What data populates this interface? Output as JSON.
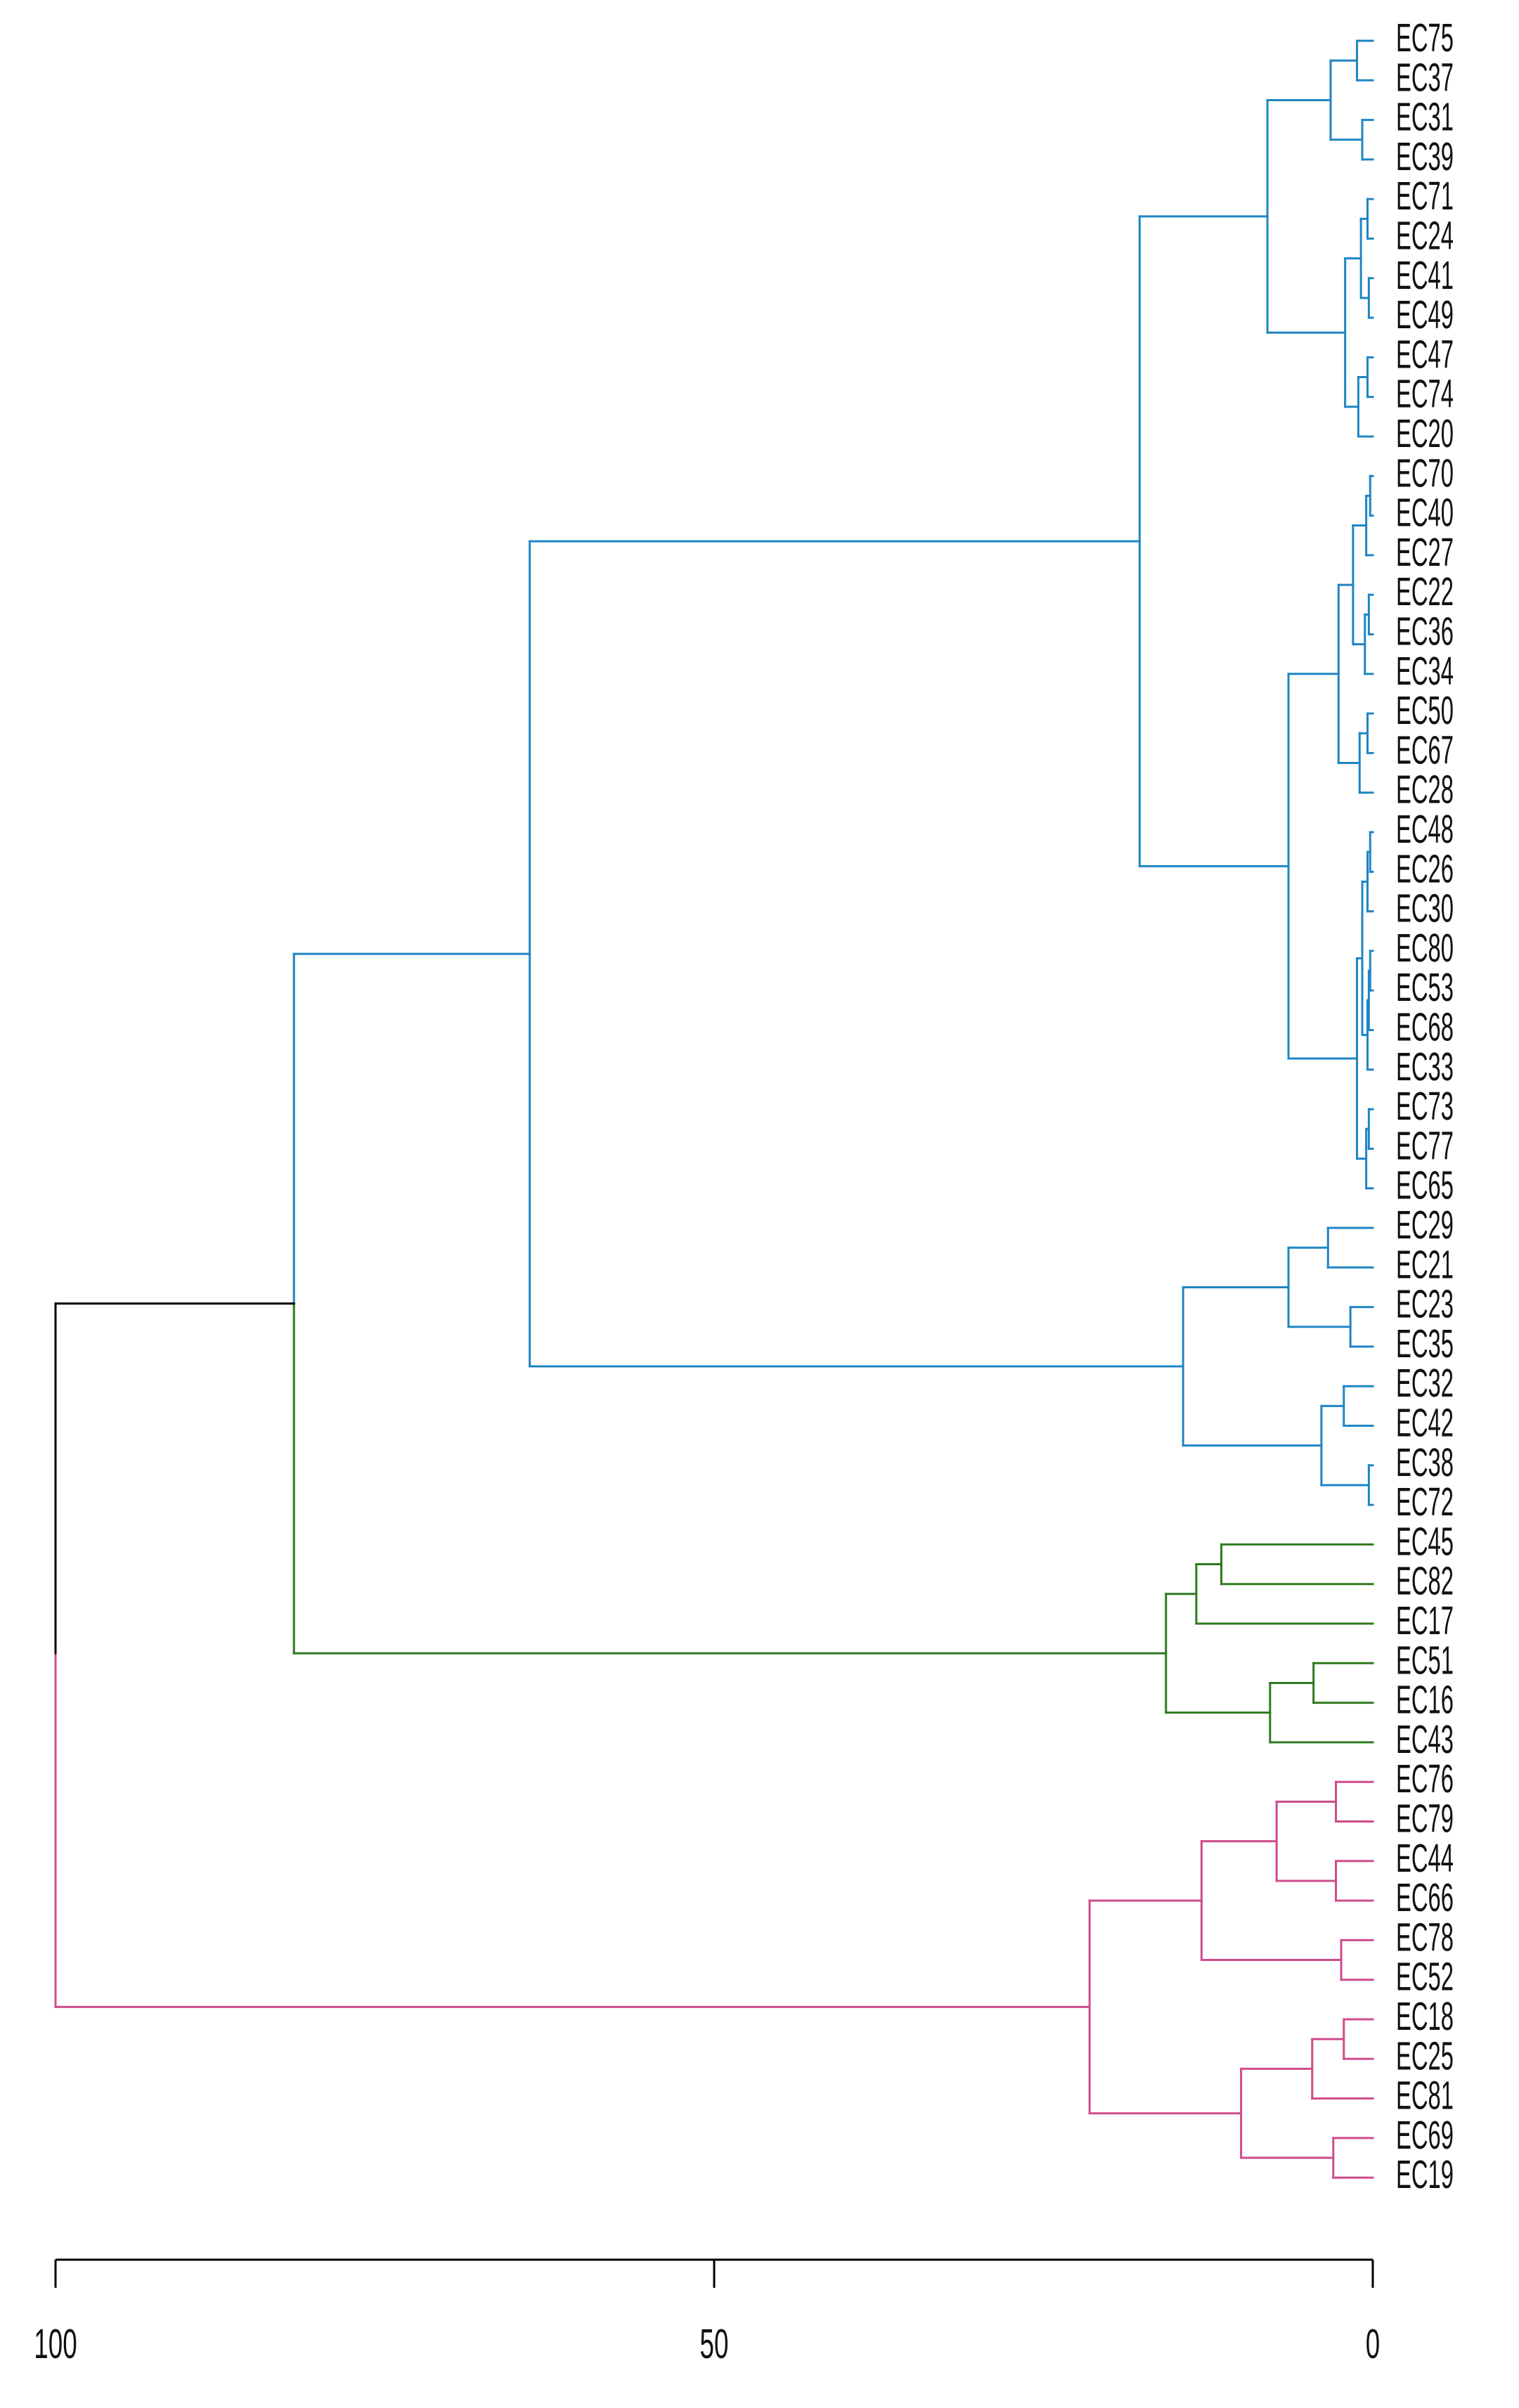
{
  "chart_data": {
    "type": "dendrogram",
    "orientation": "horizontal",
    "title": "",
    "xlabel": "",
    "ylabel": "",
    "xlim": [
      100,
      0
    ],
    "x_ticks": [
      {
        "value": 100,
        "label": "100"
      },
      {
        "value": 50,
        "label": "50"
      },
      {
        "value": 0,
        "label": "0"
      }
    ],
    "grid": false,
    "legend": "none",
    "colors": {
      "root": "#000000",
      "blue": "#1f85c4",
      "green": "#2f7a1f",
      "pink": "#cf4b8c",
      "axis": "#000000"
    },
    "leaves": [
      "EC75",
      "EC37",
      "EC31",
      "EC39",
      "EC71",
      "EC24",
      "EC41",
      "EC49",
      "EC47",
      "EC74",
      "EC20",
      "EC70",
      "EC40",
      "EC27",
      "EC22",
      "EC36",
      "EC34",
      "EC50",
      "EC67",
      "EC28",
      "EC48",
      "EC26",
      "EC30",
      "EC80",
      "EC53",
      "EC68",
      "EC33",
      "EC73",
      "EC77",
      "EC65",
      "EC29",
      "EC21",
      "EC23",
      "EC35",
      "EC32",
      "EC42",
      "EC38",
      "EC72",
      "EC45",
      "EC82",
      "EC17",
      "EC51",
      "EC16",
      "EC43",
      "EC76",
      "EC79",
      "EC44",
      "EC66",
      "EC78",
      "EC52",
      "EC18",
      "EC25",
      "EC81",
      "EC69",
      "EC19"
    ],
    "merges": [
      {
        "a": "EC75",
        "b": "EC37",
        "height": 1.2,
        "color": "blue"
      },
      {
        "a": "EC31",
        "b": "EC39",
        "height": 0.8,
        "color": "blue"
      },
      {
        "a": 0,
        "b": 1,
        "height": 3.2,
        "color": "blue"
      },
      {
        "a": "EC71",
        "b": "EC24",
        "height": 0.4,
        "color": "blue"
      },
      {
        "a": "EC41",
        "b": "EC49",
        "height": 0.3,
        "color": "blue"
      },
      {
        "a": 3,
        "b": 4,
        "height": 0.9,
        "color": "blue"
      },
      {
        "a": "EC47",
        "b": "EC74",
        "height": 0.4,
        "color": "blue"
      },
      {
        "a": 6,
        "b": "EC20",
        "height": 1.1,
        "color": "blue"
      },
      {
        "a": 5,
        "b": 7,
        "height": 2.1,
        "color": "blue"
      },
      {
        "a": 2,
        "b": 8,
        "height": 8.0,
        "color": "blue"
      },
      {
        "a": "EC70",
        "b": "EC40",
        "height": 0.2,
        "color": "blue"
      },
      {
        "a": 10,
        "b": "EC27",
        "height": 0.5,
        "color": "blue"
      },
      {
        "a": "EC22",
        "b": "EC36",
        "height": 0.3,
        "color": "blue"
      },
      {
        "a": 12,
        "b": "EC34",
        "height": 0.6,
        "color": "blue"
      },
      {
        "a": 11,
        "b": 13,
        "height": 1.5,
        "color": "blue"
      },
      {
        "a": "EC50",
        "b": "EC67",
        "height": 0.4,
        "color": "blue"
      },
      {
        "a": 15,
        "b": "EC28",
        "height": 1.0,
        "color": "blue"
      },
      {
        "a": 14,
        "b": 16,
        "height": 2.6,
        "color": "blue"
      },
      {
        "a": "EC48",
        "b": "EC26",
        "height": 0.2,
        "color": "blue"
      },
      {
        "a": 18,
        "b": "EC30",
        "height": 0.4,
        "color": "blue"
      },
      {
        "a": "EC80",
        "b": "EC53",
        "height": 0.2,
        "color": "blue"
      },
      {
        "a": 20,
        "b": "EC68",
        "height": 0.3,
        "color": "blue"
      },
      {
        "a": 21,
        "b": "EC33",
        "height": 0.4,
        "color": "blue"
      },
      {
        "a": 19,
        "b": 22,
        "height": 0.8,
        "color": "blue"
      },
      {
        "a": "EC73",
        "b": "EC77",
        "height": 0.3,
        "color": "blue"
      },
      {
        "a": 24,
        "b": "EC65",
        "height": 0.5,
        "color": "blue"
      },
      {
        "a": 23,
        "b": 25,
        "height": 1.2,
        "color": "blue"
      },
      {
        "a": 17,
        "b": 26,
        "height": 6.4,
        "color": "blue"
      },
      {
        "a": 9,
        "b": 27,
        "height": 17.7,
        "color": "blue"
      },
      {
        "a": "EC29",
        "b": "EC21",
        "height": 3.4,
        "color": "blue"
      },
      {
        "a": "EC23",
        "b": "EC35",
        "height": 1.7,
        "color": "blue"
      },
      {
        "a": 29,
        "b": 30,
        "height": 6.4,
        "color": "blue"
      },
      {
        "a": "EC32",
        "b": "EC42",
        "height": 2.2,
        "color": "blue"
      },
      {
        "a": "EC38",
        "b": "EC72",
        "height": 0.3,
        "color": "blue"
      },
      {
        "a": 32,
        "b": 33,
        "height": 3.9,
        "color": "blue"
      },
      {
        "a": 31,
        "b": 34,
        "height": 14.4,
        "color": "blue"
      },
      {
        "a": 28,
        "b": 35,
        "height": 64.0,
        "color": "blue"
      },
      {
        "a": "EC45",
        "b": "EC82",
        "height": 11.5,
        "color": "green"
      },
      {
        "a": 37,
        "b": "EC17",
        "height": 13.4,
        "color": "green"
      },
      {
        "a": "EC51",
        "b": "EC16",
        "height": 4.5,
        "color": "green"
      },
      {
        "a": 39,
        "b": "EC43",
        "height": 7.8,
        "color": "green"
      },
      {
        "a": 38,
        "b": 40,
        "height": 15.7,
        "color": "green"
      },
      {
        "a": 36,
        "b": 41,
        "height": 81.9,
        "color": "blue-green"
      },
      {
        "a": "EC76",
        "b": "EC79",
        "height": 2.8,
        "color": "pink"
      },
      {
        "a": "EC44",
        "b": "EC66",
        "height": 2.8,
        "color": "pink"
      },
      {
        "a": 43,
        "b": 44,
        "height": 7.3,
        "color": "pink"
      },
      {
        "a": "EC78",
        "b": "EC52",
        "height": 2.4,
        "color": "pink"
      },
      {
        "a": 45,
        "b": 46,
        "height": 13.0,
        "color": "pink"
      },
      {
        "a": "EC18",
        "b": "EC25",
        "height": 2.2,
        "color": "pink"
      },
      {
        "a": 48,
        "b": "EC81",
        "height": 4.6,
        "color": "pink"
      },
      {
        "a": "EC69",
        "b": "EC19",
        "height": 3.0,
        "color": "pink"
      },
      {
        "a": 49,
        "b": 50,
        "height": 10.0,
        "color": "pink"
      },
      {
        "a": 47,
        "b": 51,
        "height": 21.5,
        "color": "pink"
      },
      {
        "a": 42,
        "b": 52,
        "height": 100.0,
        "color": "root-pink"
      }
    ]
  }
}
